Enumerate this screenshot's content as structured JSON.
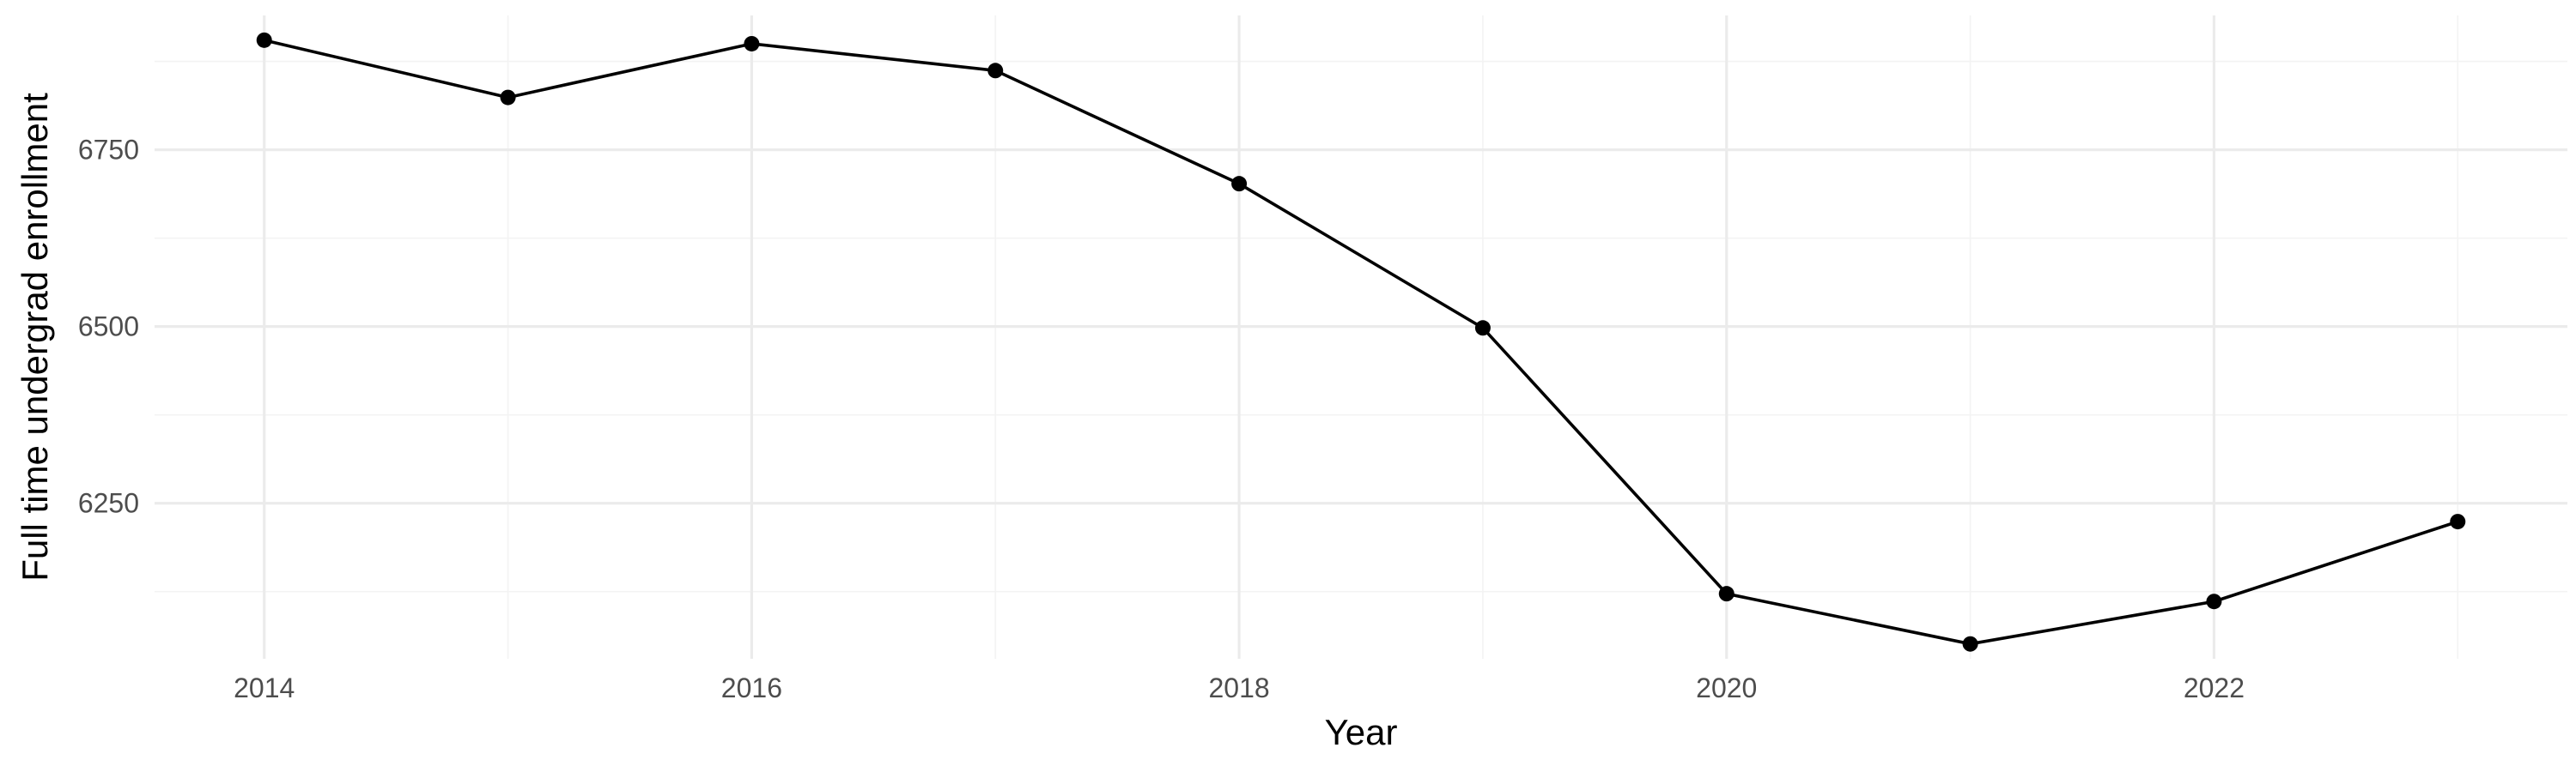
{
  "chart_data": {
    "type": "line",
    "xlabel": "Year",
    "ylabel": "Full time undergrad enrollment",
    "xlim": [
      2013.55,
      2023.45
    ],
    "ylim": [
      6030,
      6940
    ],
    "x_ticks": [
      2014,
      2016,
      2018,
      2020,
      2022
    ],
    "x_tick_labels": [
      "2014",
      "2016",
      "2018",
      "2020",
      "2022"
    ],
    "y_ticks": [
      6250,
      6500,
      6750
    ],
    "y_tick_labels": [
      "6250",
      "6500",
      "6750"
    ],
    "grid": true,
    "legend": "none",
    "series": [
      {
        "color": "#000000",
        "x": [
          2014,
          2015,
          2016,
          2017,
          2018,
          2019,
          2020,
          2021,
          2022,
          2023
        ],
        "y": [
          6905,
          6824,
          6900,
          6862,
          6702,
          6498,
          6122,
          6051,
          6111,
          6224
        ]
      }
    ]
  }
}
